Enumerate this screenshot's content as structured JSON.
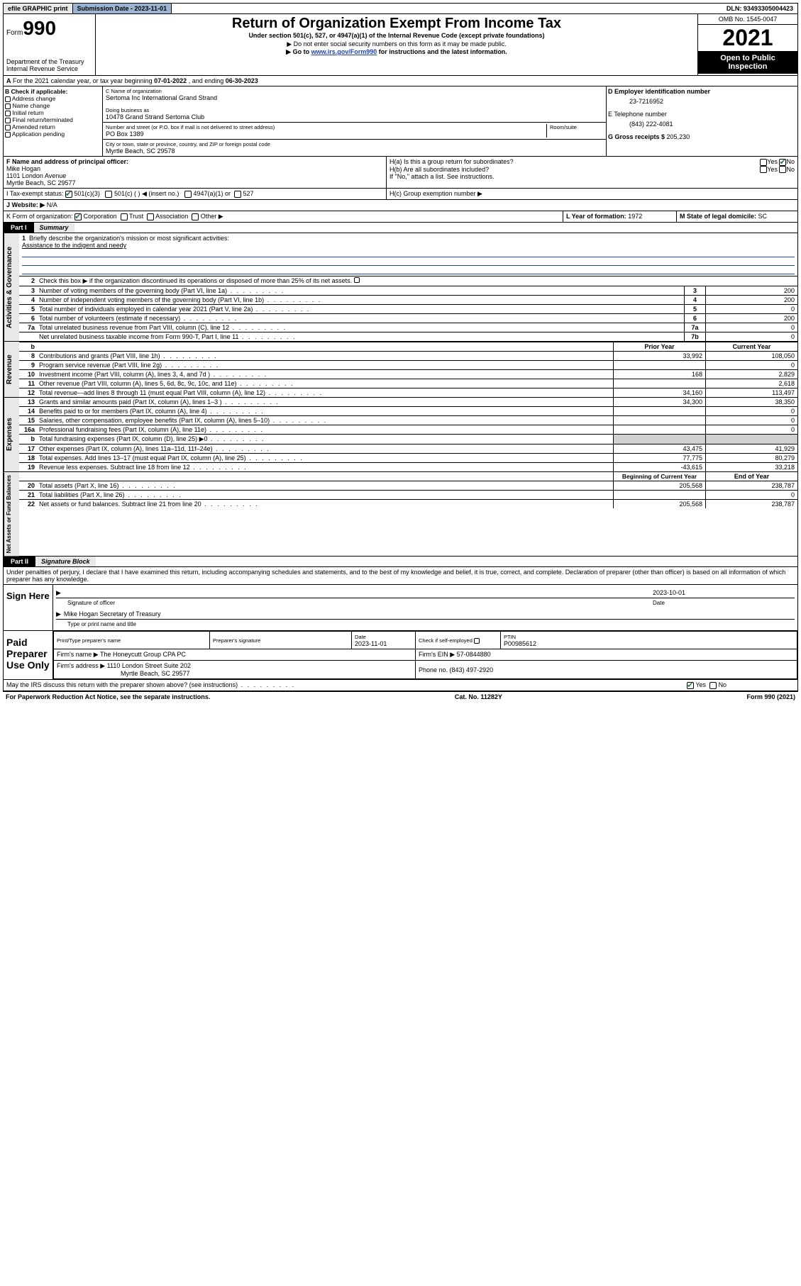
{
  "topbar": {
    "efile": "efile GRAPHIC print",
    "submission_label": "Submission Date - 2023-11-01",
    "dln": "DLN: 93493305004423"
  },
  "header": {
    "form_prefix": "Form",
    "form_number": "990",
    "dept": "Department of the Treasury",
    "irs": "Internal Revenue Service",
    "title": "Return of Organization Exempt From Income Tax",
    "subtitle": "Under section 501(c), 527, or 4947(a)(1) of the Internal Revenue Code (except private foundations)",
    "note1": "▶ Do not enter social security numbers on this form as it may be made public.",
    "note2_pre": "▶ Go to ",
    "note2_link": "www.irs.gov/Form990",
    "note2_post": " for instructions and the latest information.",
    "omb": "OMB No. 1545-0047",
    "year": "2021",
    "open": "Open to Public Inspection"
  },
  "periodA": {
    "text_pre": "For the 2021 calendar year, or tax year beginning ",
    "begin": "07-01-2022",
    "mid": " , and ending ",
    "end": "06-30-2023"
  },
  "colB": {
    "title": "B Check if applicable:",
    "items": [
      "Address change",
      "Name change",
      "Initial return",
      "Final return/terminated",
      "Amended return",
      "Application pending"
    ]
  },
  "colC": {
    "label_name": "C Name of organization",
    "org": "Sertoma Inc International Grand Strand",
    "dba_label": "Doing business as",
    "dba": "10478 Grand Strand Sertoma Club",
    "street_label": "Number and street (or P.O. box if mail is not delivered to street address)",
    "room_label": "Room/suite",
    "street": "PO Box 1389",
    "city_label": "City or town, state or province, country, and ZIP or foreign postal code",
    "city": "Myrtle Beach, SC  29578"
  },
  "colD": {
    "ein_label": "D Employer identification number",
    "ein": "23-7216952",
    "tel_label": "E Telephone number",
    "tel": "(843) 222-4081",
    "gross_label": "G Gross receipts $ ",
    "gross": "205,230"
  },
  "sectionF": {
    "label": "F  Name and address of principal officer:",
    "name": "Mike Hogan",
    "addr1": "1101 London Avenue",
    "addr2": "Myrtle Beach, SC  29577"
  },
  "sectionH": {
    "ha": "H(a)  Is this a group return for subordinates?",
    "hb": "H(b)  Are all subordinates included?",
    "hb_note": "If \"No,\" attach a list. See instructions.",
    "hc": "H(c)  Group exemption number ▶",
    "yes": "Yes",
    "no": "No"
  },
  "sectionI": {
    "label": "I    Tax-exempt status:",
    "opt1": "501(c)(3)",
    "opt2": "501(c) (  ) ◀ (insert no.)",
    "opt3": "4947(a)(1) or",
    "opt4": "527"
  },
  "sectionJ": {
    "label": "J   Website: ▶",
    "val": "N/A"
  },
  "sectionK": {
    "label": "K Form of organization:",
    "corp": "Corporation",
    "trust": "Trust",
    "assoc": "Association",
    "other": "Other ▶"
  },
  "sectionL": {
    "label": "L Year of formation: ",
    "val": "1972"
  },
  "sectionM": {
    "label": "M State of legal domicile: ",
    "val": "SC"
  },
  "part1": {
    "hdr": "Part I",
    "title": "Summary",
    "line1_label": "Briefly describe the organization's mission or most significant activities:",
    "line1_val": "Assistance to the indigent and needy",
    "line2": "Check this box ▶   if the organization discontinued its operations or disposed of more than 25% of its net assets.",
    "rows_gov": [
      {
        "n": "3",
        "t": "Number of voting members of the governing body (Part VI, line 1a)",
        "id": "3",
        "v": "200"
      },
      {
        "n": "4",
        "t": "Number of independent voting members of the governing body (Part VI, line 1b)",
        "id": "4",
        "v": "200"
      },
      {
        "n": "5",
        "t": "Total number of individuals employed in calendar year 2021 (Part V, line 2a)",
        "id": "5",
        "v": "0"
      },
      {
        "n": "6",
        "t": "Total number of volunteers (estimate if necessary)",
        "id": "6",
        "v": "200"
      },
      {
        "n": "7a",
        "t": "Total unrelated business revenue from Part VIII, column (C), line 12",
        "id": "7a",
        "v": "0"
      },
      {
        "n": "",
        "t": "Net unrelated business taxable income from Form 990-T, Part I, line 11",
        "id": "7b",
        "v": "0"
      }
    ],
    "col_prior": "Prior Year",
    "col_curr": "Current Year",
    "rows_rev": [
      {
        "n": "8",
        "t": "Contributions and grants (Part VIII, line 1h)",
        "p": "33,992",
        "c": "108,050"
      },
      {
        "n": "9",
        "t": "Program service revenue (Part VIII, line 2g)",
        "p": "",
        "c": "0"
      },
      {
        "n": "10",
        "t": "Investment income (Part VIII, column (A), lines 3, 4, and 7d )",
        "p": "168",
        "c": "2,829"
      },
      {
        "n": "11",
        "t": "Other revenue (Part VIII, column (A), lines 5, 6d, 8c, 9c, 10c, and 11e)",
        "p": "",
        "c": "2,618"
      },
      {
        "n": "12",
        "t": "Total revenue—add lines 8 through 11 (must equal Part VIII, column (A), line 12)",
        "p": "34,160",
        "c": "113,497"
      }
    ],
    "rows_exp": [
      {
        "n": "13",
        "t": "Grants and similar amounts paid (Part IX, column (A), lines 1–3 )",
        "p": "34,300",
        "c": "38,350"
      },
      {
        "n": "14",
        "t": "Benefits paid to or for members (Part IX, column (A), line 4)",
        "p": "",
        "c": "0"
      },
      {
        "n": "15",
        "t": "Salaries, other compensation, employee benefits (Part IX, column (A), lines 5–10)",
        "p": "",
        "c": "0"
      },
      {
        "n": "16a",
        "t": "Professional fundraising fees (Part IX, column (A), line 11e)",
        "p": "",
        "c": "0"
      },
      {
        "n": "b",
        "t": "Total fundraising expenses (Part IX, column (D), line 25) ▶0",
        "p": "SHADE",
        "c": "SHADE"
      },
      {
        "n": "17",
        "t": "Other expenses (Part IX, column (A), lines 11a–11d, 11f–24e)",
        "p": "43,475",
        "c": "41,929"
      },
      {
        "n": "18",
        "t": "Total expenses. Add lines 13–17 (must equal Part IX, column (A), line 25)",
        "p": "77,775",
        "c": "80,279"
      },
      {
        "n": "19",
        "t": "Revenue less expenses. Subtract line 18 from line 12",
        "p": "-43,615",
        "c": "33,218"
      }
    ],
    "col_begin": "Beginning of Current Year",
    "col_end": "End of Year",
    "rows_net": [
      {
        "n": "20",
        "t": "Total assets (Part X, line 16)",
        "p": "205,568",
        "c": "238,787"
      },
      {
        "n": "21",
        "t": "Total liabilities (Part X, line 26)",
        "p": "",
        "c": "0"
      },
      {
        "n": "22",
        "t": "Net assets or fund balances. Subtract line 21 from line 20",
        "p": "205,568",
        "c": "238,787"
      }
    ]
  },
  "part2": {
    "hdr": "Part II",
    "title": "Signature Block",
    "decl": "Under penalties of perjury, I declare that I have examined this return, including accompanying schedules and statements, and to the best of my knowledge and belief, it is true, correct, and complete. Declaration of preparer (other than officer) is based on all information of which preparer has any knowledge.",
    "sign_here": "Sign Here",
    "sig_officer": "Signature of officer",
    "sig_date": "Date",
    "sig_date_val": "2023-10-01",
    "officer_name": "Mike Hogan  Secretary of Treasury",
    "officer_label": "Type or print name and title",
    "paid": "Paid Preparer Use Only",
    "prep_name_label": "Print/Type preparer's name",
    "prep_sig_label": "Preparer's signature",
    "prep_date_label": "Date",
    "prep_date": "2023-11-01",
    "prep_check": "Check        if self-employed",
    "ptin_label": "PTIN",
    "ptin": "P00985612",
    "firm_name_label": "Firm's name    ▶ ",
    "firm_name": "The Honeycutt Group CPA PC",
    "firm_ein_label": "Firm's EIN ▶ ",
    "firm_ein": "57-0844880",
    "firm_addr_label": "Firm's address ▶ ",
    "firm_addr1": "1110 London Street Suite 202",
    "firm_addr2": "Myrtle Beach, SC  29577",
    "firm_phone_label": "Phone no. ",
    "firm_phone": "(843) 497-2920",
    "discuss": "May the IRS discuss this return with the preparer shown above? (see instructions)"
  },
  "footer": {
    "left": "For Paperwork Reduction Act Notice, see the separate instructions.",
    "mid": "Cat. No. 11282Y",
    "right": "Form 990 (2021)"
  },
  "sidebars": {
    "gov": "Activities & Governance",
    "rev": "Revenue",
    "exp": "Expenses",
    "net": "Net Assets or Fund Balances"
  }
}
